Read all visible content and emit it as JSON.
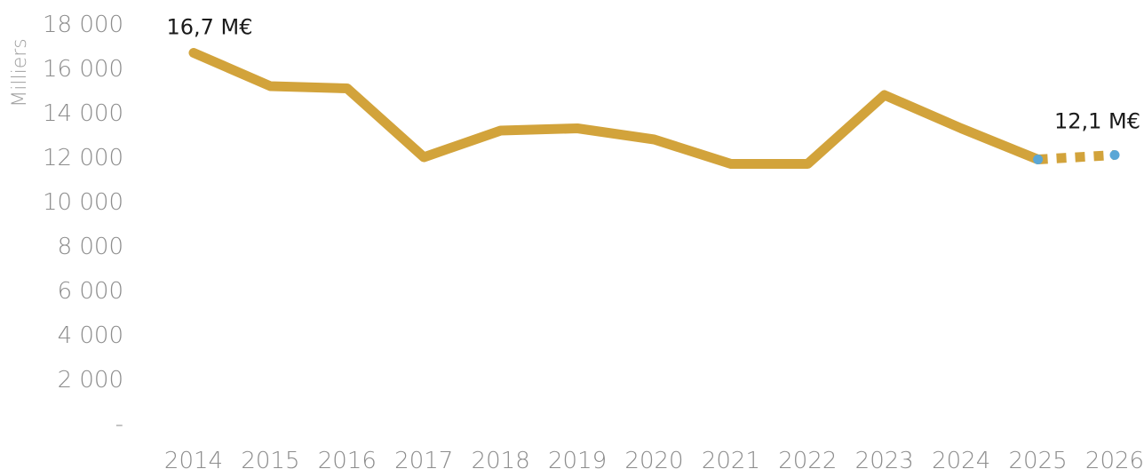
{
  "chart_data": {
    "type": "line",
    "ylabel": "Milliers",
    "ylim": [
      0,
      18000
    ],
    "y_ticks": [
      0,
      2000,
      4000,
      6000,
      8000,
      10000,
      12000,
      14000,
      16000,
      18000
    ],
    "y_tick_labels": [
      "-",
      "2 000",
      "4 000",
      "6 000",
      "8 000",
      "10 000",
      "12 000",
      "14 000",
      "16 000",
      "18 000"
    ],
    "categories": [
      "2014",
      "2015",
      "2016",
      "2017",
      "2018",
      "2019",
      "2020",
      "2021",
      "2022",
      "2023",
      "2024",
      "2025",
      "2026"
    ],
    "series": [
      {
        "values": [
          16700,
          15200,
          15100,
          12000,
          13200,
          13300,
          12800,
          11700,
          11700,
          14800,
          13300,
          11900,
          12100
        ],
        "projected_from": "2025"
      }
    ],
    "annotations": [
      {
        "category": "2014",
        "text": "16,7 M€"
      },
      {
        "category": "2026",
        "text": "12,1 M€"
      }
    ],
    "grid": false,
    "legend": "none"
  },
  "colors": {
    "line": "#D2A33B",
    "marker": "#5AA7D6",
    "tick_text": "#8C8C8C",
    "label_text": "#1A1A1A",
    "axis_title": "#A0A0A0"
  }
}
